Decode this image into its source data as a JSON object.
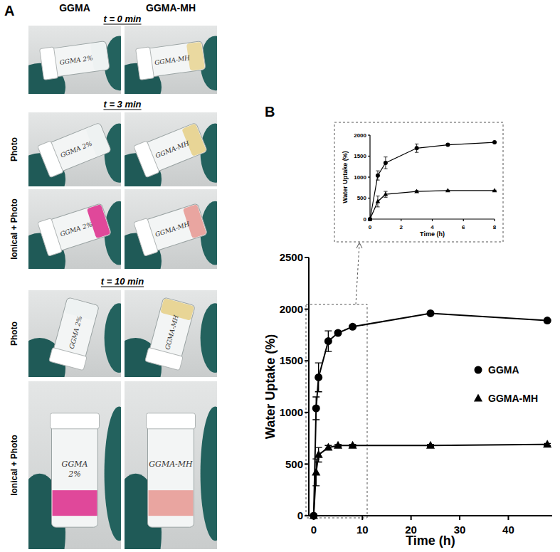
{
  "panel_a": {
    "label": "A",
    "columns": [
      "GGMA",
      "GGMA-MH"
    ],
    "time_labels": [
      "t = 0 min",
      "t = 3 min",
      "t = 10 min"
    ],
    "row_labels": [
      "Photo",
      "Ionical + Photo"
    ],
    "vial_labels": [
      "GGMA 2%",
      "GGMA-MH"
    ]
  },
  "panel_b": {
    "label": "B"
  },
  "chart_data": [
    {
      "type": "line",
      "x_label": "Time (h)",
      "y_label": "Water Uptake (%)",
      "x": [
        0,
        0.5,
        1,
        3,
        5,
        8,
        24,
        48
      ],
      "series": [
        {
          "name": "GGMA",
          "color": "#000000",
          "marker": "circle",
          "values": [
            0,
            1040,
            1340,
            1690,
            1770,
            1830,
            1960,
            1890
          ],
          "errors": [
            0,
            110,
            140,
            100,
            10,
            10,
            10,
            10
          ]
        },
        {
          "name": "GGMA-MH",
          "color": "#000000",
          "marker": "triangle",
          "values": [
            0,
            420,
            590,
            660,
            680,
            680,
            680,
            690
          ],
          "errors": [
            0,
            130,
            70,
            20,
            10,
            10,
            10,
            10
          ]
        }
      ],
      "xlim": [
        -1,
        49
      ],
      "ylim": [
        0,
        2500
      ],
      "xticks": [
        0,
        10,
        20,
        30,
        40
      ],
      "yticks": [
        0,
        500,
        1000,
        1500,
        2000,
        2500
      ],
      "legend": "right"
    },
    {
      "type": "line",
      "x_label": "Time (h)",
      "y_label": "Water Uptake (%)",
      "x": [
        0,
        0.5,
        1,
        3,
        5,
        8
      ],
      "series": [
        {
          "name": "GGMA",
          "color": "#000000",
          "marker": "circle",
          "values": [
            0,
            1040,
            1340,
            1690,
            1770,
            1830
          ],
          "errors": [
            0,
            110,
            140,
            100,
            10,
            10
          ]
        },
        {
          "name": "GGMA-MH",
          "color": "#000000",
          "marker": "triangle",
          "values": [
            0,
            420,
            590,
            660,
            680,
            680
          ],
          "errors": [
            0,
            130,
            70,
            20,
            10,
            10
          ]
        }
      ],
      "xlim": [
        0,
        8
      ],
      "ylim": [
        0,
        2000
      ],
      "xticks": [
        0,
        2,
        4,
        6,
        8
      ],
      "yticks": [
        0,
        500,
        1000,
        1500,
        2000
      ]
    }
  ]
}
